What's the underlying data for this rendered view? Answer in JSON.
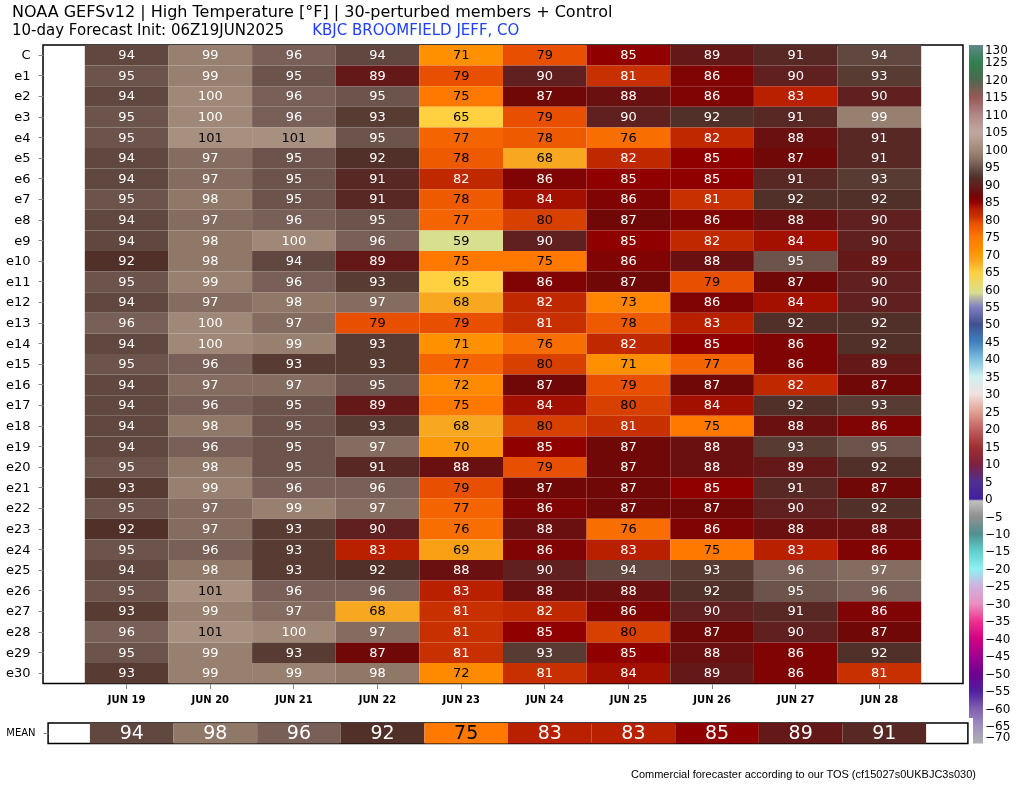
{
  "chart_data": [
    {
      "type": "heatmap",
      "title": "NOAA GEFSv12 | High Temperature [°F] | 30-perturbed members + Control",
      "subtitle": "10-day Forecast Init: 06Z19JUN2025",
      "annotations": [
        "KBJC BROOMFIELD JEFF, CO",
        "Commercial forecaster according to our TOS (cf15027s0UKBJC3s030)"
      ],
      "categories": [
        "JUN 19",
        "JUN 20",
        "JUN 21",
        "JUN 22",
        "JUN 23",
        "JUN 24",
        "JUN 25",
        "JUN 26",
        "JUN 27",
        "JUN 28"
      ],
      "y_categories": [
        "C",
        "e1",
        "e2",
        "e3",
        "e4",
        "e5",
        "e6",
        "e7",
        "e8",
        "e9",
        "e10",
        "e11",
        "e12",
        "e13",
        "e14",
        "e15",
        "e16",
        "e17",
        "e18",
        "e19",
        "e20",
        "e21",
        "e22",
        "e23",
        "e24",
        "e25",
        "e26",
        "e27",
        "e28",
        "e29",
        "e30"
      ],
      "cells": [
        [
          94,
          99,
          96,
          94,
          71,
          79,
          85,
          89,
          91,
          94
        ],
        [
          95,
          99,
          95,
          89,
          79,
          90,
          81,
          86,
          90,
          93
        ],
        [
          94,
          100,
          96,
          95,
          75,
          87,
          88,
          86,
          83,
          90
        ],
        [
          95,
          100,
          96,
          93,
          65,
          79,
          90,
          92,
          91,
          99
        ],
        [
          95,
          101,
          101,
          95,
          77,
          78,
          76,
          82,
          88,
          91
        ],
        [
          94,
          97,
          95,
          92,
          78,
          68,
          82,
          85,
          87,
          91
        ],
        [
          94,
          97,
          95,
          91,
          82,
          86,
          85,
          85,
          91,
          93
        ],
        [
          95,
          98,
          95,
          91,
          78,
          84,
          86,
          81,
          92,
          92
        ],
        [
          94,
          97,
          96,
          95,
          77,
          80,
          87,
          86,
          88,
          90
        ],
        [
          94,
          98,
          100,
          96,
          59,
          90,
          85,
          82,
          84,
          90
        ],
        [
          92,
          98,
          94,
          89,
          75,
          75,
          86,
          88,
          95,
          89
        ],
        [
          95,
          99,
          96,
          93,
          65,
          86,
          87,
          79,
          87,
          90
        ],
        [
          94,
          97,
          98,
          97,
          68,
          82,
          73,
          86,
          84,
          90
        ],
        [
          96,
          100,
          97,
          79,
          79,
          81,
          78,
          83,
          92,
          92
        ],
        [
          94,
          100,
          99,
          93,
          71,
          76,
          82,
          85,
          86,
          92
        ],
        [
          95,
          96,
          93,
          93,
          77,
          80,
          71,
          77,
          86,
          89
        ],
        [
          94,
          97,
          97,
          95,
          72,
          87,
          79,
          87,
          82,
          87
        ],
        [
          94,
          96,
          95,
          89,
          75,
          84,
          80,
          84,
          92,
          93
        ],
        [
          94,
          98,
          95,
          93,
          68,
          80,
          81,
          75,
          88,
          86
        ],
        [
          94,
          96,
          95,
          97,
          70,
          85,
          87,
          88,
          93,
          95
        ],
        [
          95,
          98,
          95,
          91,
          88,
          79,
          87,
          88,
          89,
          92
        ],
        [
          93,
          99,
          96,
          96,
          79,
          87,
          87,
          85,
          91,
          87
        ],
        [
          95,
          97,
          99,
          97,
          77,
          86,
          87,
          87,
          90,
          92
        ],
        [
          92,
          97,
          93,
          90,
          76,
          88,
          76,
          86,
          88,
          88
        ],
        [
          95,
          96,
          93,
          83,
          69,
          86,
          83,
          75,
          83,
          86
        ],
        [
          94,
          98,
          93,
          92,
          88,
          90,
          94,
          93,
          96,
          97
        ],
        [
          95,
          101,
          96,
          96,
          83,
          88,
          88,
          92,
          95,
          96
        ],
        [
          93,
          99,
          97,
          68,
          81,
          82,
          86,
          90,
          91,
          86
        ],
        [
          96,
          101,
          100,
          97,
          81,
          85,
          80,
          87,
          90,
          87
        ],
        [
          95,
          99,
          93,
          87,
          81,
          93,
          85,
          88,
          86,
          92
        ],
        [
          93,
          99,
          99,
          98,
          72,
          81,
          84,
          89,
          86,
          81
        ]
      ],
      "data_labels": true,
      "clim": [
        -70,
        130
      ],
      "cticks": [
        -70,
        -65,
        -60,
        -55,
        -50,
        -45,
        -40,
        -35,
        -30,
        -25,
        -20,
        -15,
        -10,
        -5,
        0,
        5,
        10,
        15,
        20,
        25,
        30,
        35,
        40,
        45,
        50,
        55,
        60,
        65,
        70,
        75,
        80,
        85,
        90,
        95,
        100,
        105,
        110,
        115,
        120,
        125,
        130
      ]
    },
    {
      "type": "heatmap",
      "categories": [
        null,
        null,
        null,
        null,
        null,
        null,
        null,
        null,
        null,
        null
      ],
      "y_categories": [
        "MEAN"
      ],
      "cells": [
        [
          94,
          98,
          96,
          92,
          75,
          83,
          83,
          85,
          89,
          91
        ]
      ],
      "data_labels": true,
      "tick_labels": "y"
    }
  ]
}
